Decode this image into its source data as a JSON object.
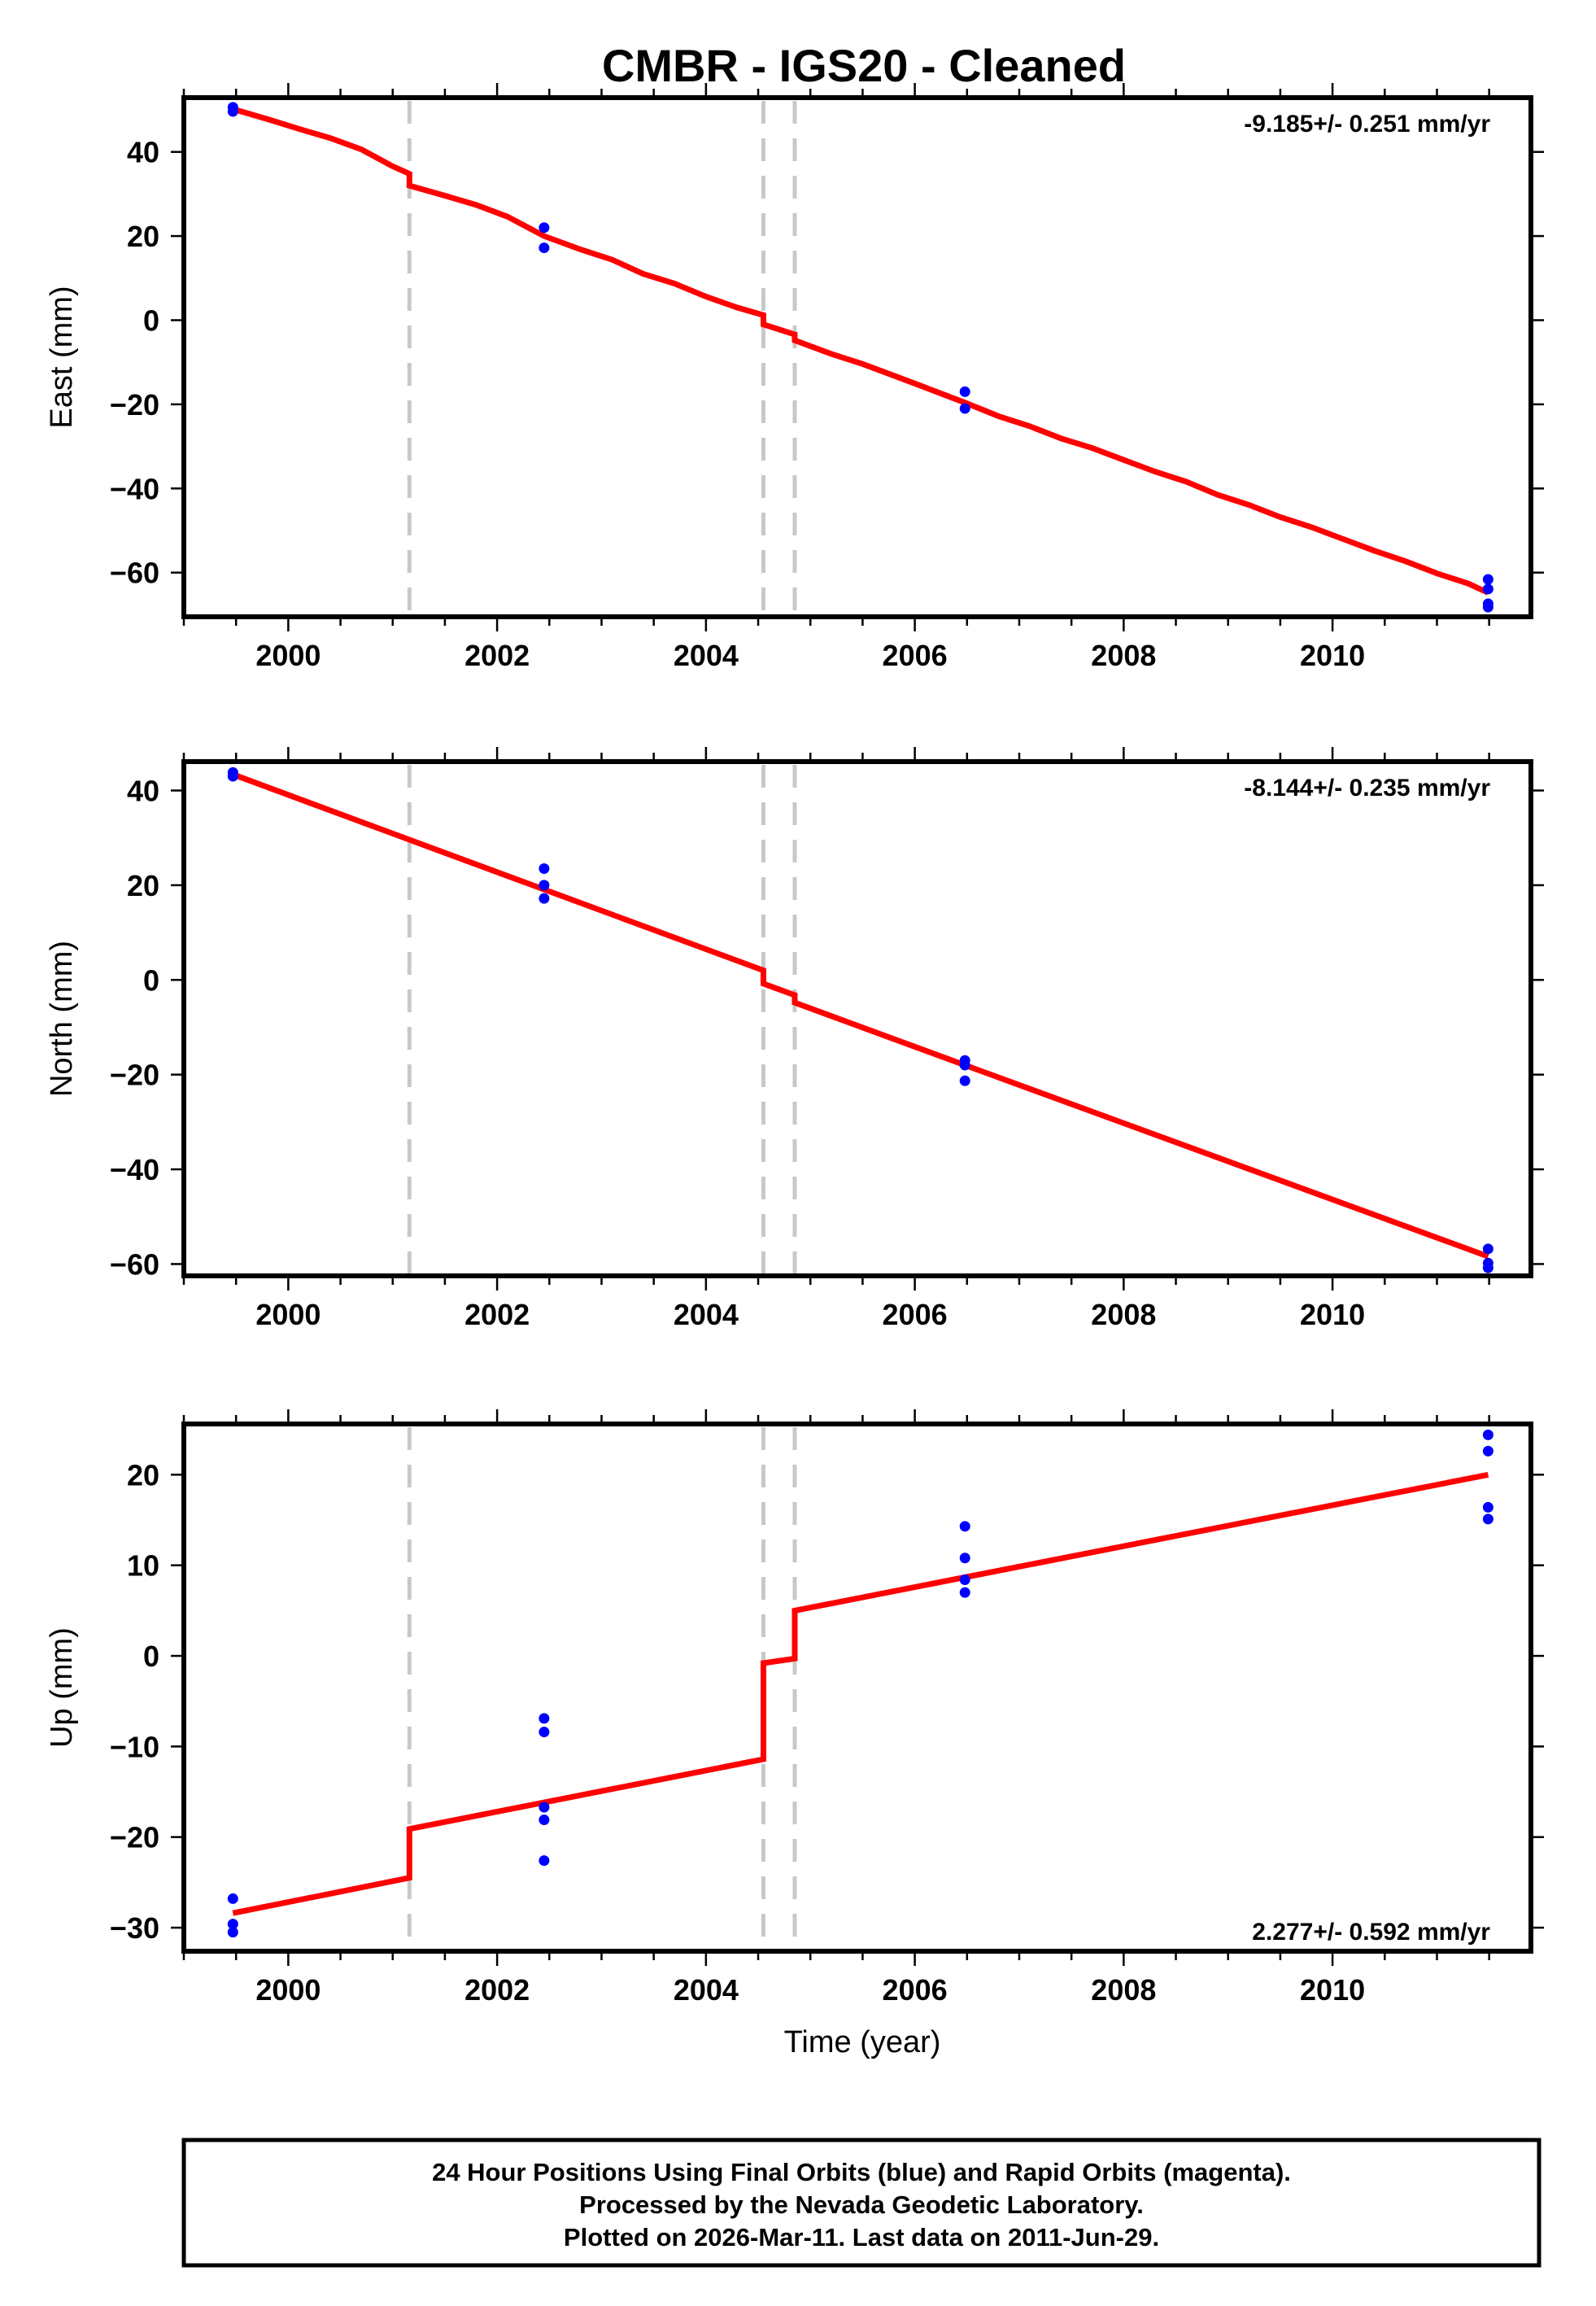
{
  "chart_data": {
    "type": "line",
    "title": "CMBR  - IGS20 - Cleaned",
    "xlabel": "Time (year)",
    "xlim": [
      1999.0,
      2011.9
    ],
    "x_ticks": [
      2000,
      2002,
      2004,
      2006,
      2008,
      2010
    ],
    "x_tick_labels": [
      "2000",
      "2002",
      "2004",
      "2006",
      "2008",
      "2010"
    ],
    "x_minor_step": 0.5,
    "grid": false,
    "colors": {
      "points": "#0000ff",
      "model": "#ff0000",
      "steps": "#c8c8c8",
      "frame": "#000000"
    },
    "offset_epochs": [
      2001.16,
      2004.55,
      2004.85
    ],
    "panels": [
      {
        "name": "east",
        "ylabel": "East (mm)",
        "ylim": [
          -70.5,
          52.9
        ],
        "y_ticks": [
          40,
          20,
          0,
          -20,
          -40,
          -60
        ],
        "y_tick_labels": [
          "40",
          "20",
          "0",
          "−20",
          "−40",
          "−60"
        ],
        "rate_label": "-9.185+/- 0.251 mm/yr",
        "rate_position": "top-right",
        "points": {
          "x": [
            1999.47,
            1999.47,
            2002.45,
            2002.45,
            2006.48,
            2006.48,
            2011.49,
            2011.49,
            2011.49,
            2011.49
          ],
          "y": [
            50.6,
            49.6,
            22.0,
            17.2,
            -17.0,
            -21.0,
            -61.6,
            -63.9,
            -67.4,
            -68.2
          ]
        },
        "model": {
          "x": [
            1999.47,
            1999.8,
            2000.1,
            2000.4,
            2000.7,
            2001.0,
            2001.16,
            2001.16,
            2001.5,
            2001.8,
            2002.1,
            2002.45,
            2002.8,
            2003.1,
            2003.4,
            2003.7,
            2004.0,
            2004.3,
            2004.55,
            2004.55,
            2004.85,
            2004.85,
            2005.2,
            2005.5,
            2005.8,
            2006.1,
            2006.48,
            2006.8,
            2007.1,
            2007.4,
            2007.7,
            2008.0,
            2008.3,
            2008.6,
            2008.9,
            2009.2,
            2009.5,
            2009.8,
            2010.1,
            2010.4,
            2010.7,
            2011.0,
            2011.3,
            2011.49
          ],
          "y": [
            50.2,
            47.8,
            45.5,
            43.3,
            40.6,
            36.6,
            34.8,
            32.0,
            29.6,
            27.4,
            24.6,
            20.0,
            16.8,
            14.4,
            11.0,
            8.7,
            5.6,
            3.0,
            1.2,
            -1.0,
            -3.4,
            -4.8,
            -8.0,
            -10.4,
            -13.2,
            -16.0,
            -19.6,
            -22.8,
            -25.2,
            -28.1,
            -30.4,
            -33.2,
            -36.0,
            -38.4,
            -41.5,
            -43.9,
            -46.8,
            -49.2,
            -52.0,
            -54.8,
            -57.3,
            -60.2,
            -62.6,
            -64.8
          ]
        }
      },
      {
        "name": "north",
        "ylabel": "North (mm)",
        "ylim": [
          -62.5,
          46.1
        ],
        "y_ticks": [
          40,
          20,
          0,
          -20,
          -40,
          -60
        ],
        "y_tick_labels": [
          "40",
          "20",
          "0",
          "−20",
          "−40",
          "−60"
        ],
        "rate_label": "-8.144+/- 0.235 mm/yr",
        "rate_position": "top-right",
        "points": {
          "x": [
            1999.47,
            1999.47,
            2002.45,
            2002.45,
            2002.45,
            2006.48,
            2006.48,
            2006.48,
            2011.49,
            2011.49,
            2011.49
          ],
          "y": [
            43.8,
            43.0,
            23.5,
            20.0,
            17.2,
            -17.0,
            -18.0,
            -21.3,
            -56.8,
            -59.8,
            -60.8
          ]
        },
        "model": {
          "x": [
            1999.47,
            2001.16,
            2002.45,
            2004.55,
            2004.55,
            2004.85,
            2004.85,
            2006.48,
            2011.49
          ],
          "y": [
            43.4,
            29.6,
            19.1,
            2.0,
            -0.8,
            -3.2,
            -4.8,
            -18.0,
            -58.4
          ]
        }
      },
      {
        "name": "up",
        "ylabel": "Up (mm)",
        "ylim": [
          -32.6,
          25.6
        ],
        "y_ticks": [
          20,
          10,
          0,
          -10,
          -20,
          -30
        ],
        "y_tick_labels": [
          "20",
          "10",
          "0",
          "−10",
          "−20",
          "−30"
        ],
        "rate_label": "2.277+/- 0.592 mm/yr",
        "rate_position": "bottom-right",
        "points": {
          "x": [
            1999.47,
            1999.47,
            1999.47,
            2002.45,
            2002.45,
            2002.45,
            2002.45,
            2002.45,
            2006.48,
            2006.48,
            2006.48,
            2006.48,
            2011.49,
            2011.49,
            2011.49,
            2011.49
          ],
          "y": [
            -26.8,
            -29.6,
            -30.5,
            -6.9,
            -8.4,
            -16.7,
            -18.1,
            -22.6,
            14.3,
            10.8,
            8.4,
            7.0,
            24.4,
            22.6,
            16.4,
            15.1
          ]
        },
        "model": {
          "x": [
            1999.47,
            2001.16,
            2001.16,
            2004.55,
            2004.55,
            2004.85,
            2004.85,
            2011.49
          ],
          "y": [
            -28.4,
            -24.5,
            -19.1,
            -11.4,
            -0.8,
            -0.3,
            5.0,
            20.0
          ]
        }
      }
    ],
    "footer": [
      "24 Hour Positions Using Final Orbits (blue) and Rapid Orbits (magenta).",
      "Processed by the Nevada Geodetic Laboratory.",
      "Plotted on 2026-Mar-11. Last data on 2011-Jun-29."
    ]
  }
}
